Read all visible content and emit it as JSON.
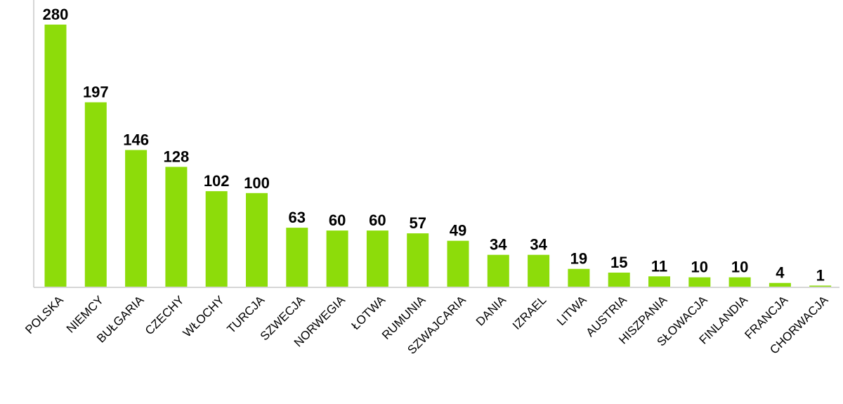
{
  "chart_data": {
    "type": "bar",
    "categories": [
      "POLSKA",
      "NIEMCY",
      "BUŁGARIA",
      "CZECHY",
      "WŁOCHY",
      "TURCJA",
      "SZWECJA",
      "NORWEGIA",
      "ŁOTWA",
      "RUMUNIA",
      "SZWAJCARIA",
      "DANIA",
      "IZRAEL",
      "LITWA",
      "AUSTRIA",
      "HISZPANIA",
      "SŁOWACJA",
      "FINLANDIA",
      "FRANCJA",
      "CHORWACJA"
    ],
    "values": [
      280,
      197,
      146,
      128,
      102,
      100,
      63,
      60,
      60,
      57,
      49,
      34,
      34,
      19,
      15,
      11,
      10,
      10,
      4,
      1
    ],
    "title": "",
    "xlabel": "",
    "ylabel": "",
    "ylim": [
      0,
      280
    ],
    "grid": false,
    "legend": "none",
    "data_labels": true,
    "bar_color": "#8ddc0a",
    "axis_color": "#c8c8c8"
  }
}
